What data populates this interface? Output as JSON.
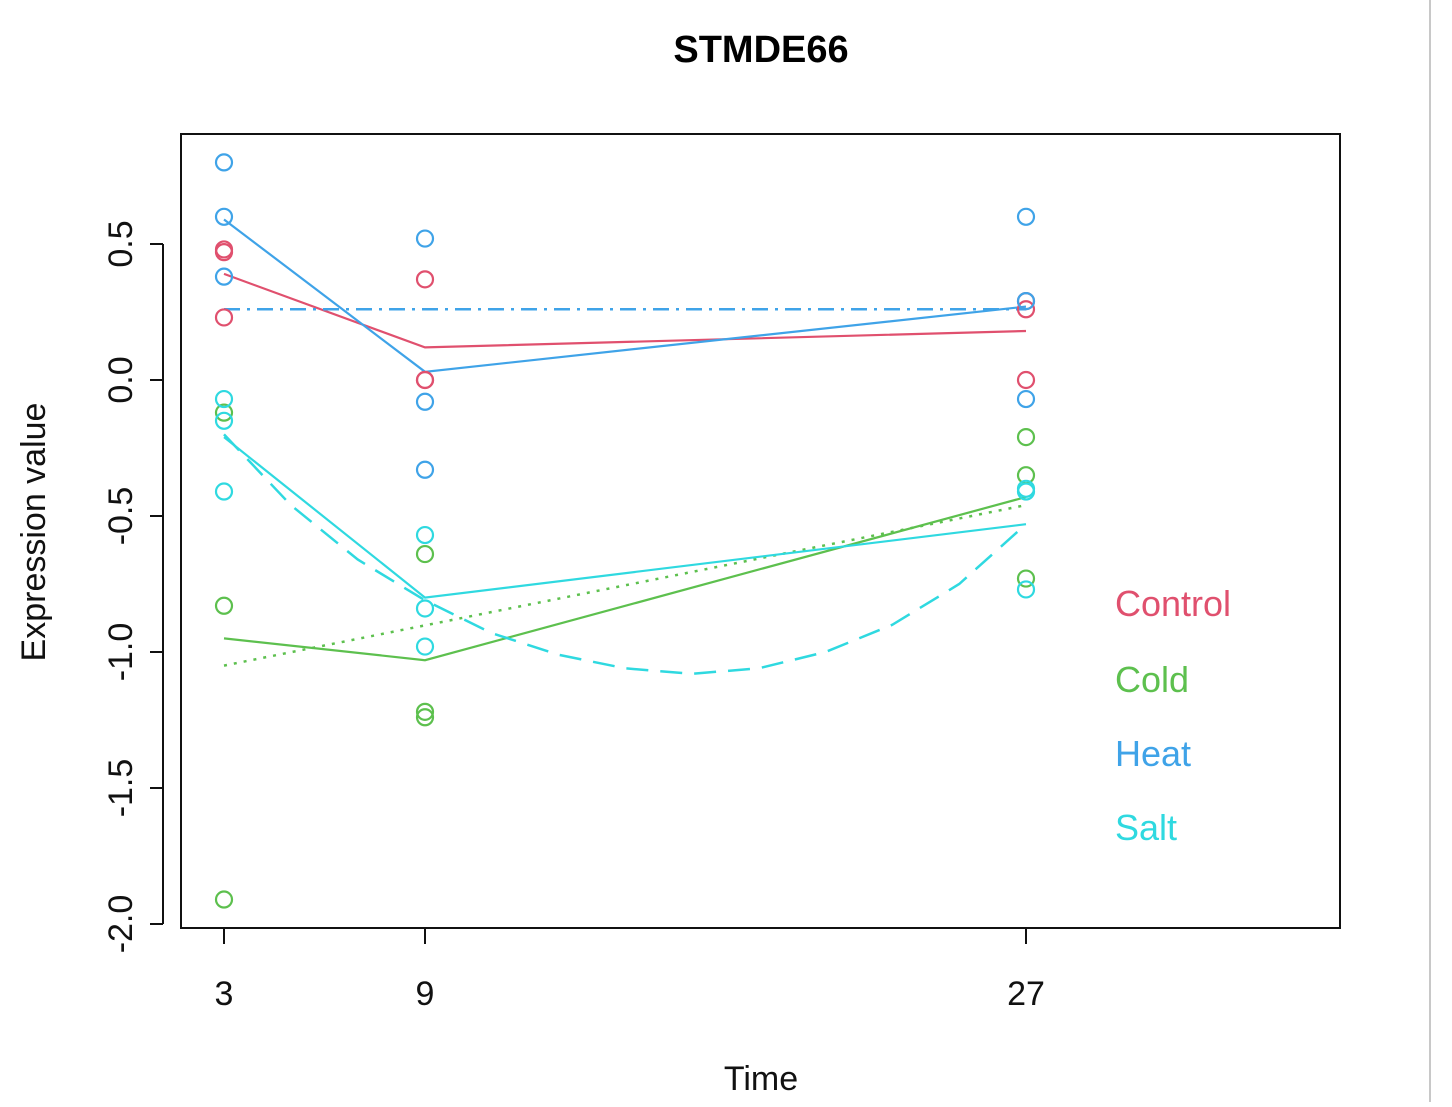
{
  "chart_data": {
    "type": "scatter",
    "title": "STMDE66",
    "xlabel": "Time",
    "ylabel": "Expression value",
    "x_ticks": [
      3,
      9,
      27
    ],
    "y_ticks": [
      -2.0,
      -1.5,
      -1.0,
      -0.5,
      0.0,
      0.5
    ],
    "y_tick_labels": [
      "-2.0",
      "-1.5",
      "-1.0",
      "-0.5",
      "0.0",
      "0.5"
    ],
    "x_tick_labels": [
      "3",
      "9",
      "27"
    ],
    "ylim": [
      -2.0,
      0.8
    ],
    "grid": false,
    "legend_position": "right",
    "series": [
      {
        "name": "Control",
        "color": "#e0506e",
        "points": [
          [
            3,
            0.47
          ],
          [
            3,
            0.48
          ],
          [
            3,
            0.23
          ],
          [
            9,
            0.37
          ],
          [
            9,
            0.0
          ],
          [
            9,
            0.0
          ],
          [
            27,
            0.29
          ],
          [
            27,
            0.26
          ],
          [
            27,
            0.0
          ]
        ],
        "mean_line": [
          [
            3,
            0.39
          ],
          [
            9,
            0.12
          ],
          [
            27,
            0.18
          ]
        ],
        "fit_line": [
          [
            3,
            0.26
          ],
          [
            27,
            0.26
          ]
        ],
        "fit_style": "dashdot"
      },
      {
        "name": "Cold",
        "color": "#5dc04e",
        "points": [
          [
            3,
            -0.12
          ],
          [
            3,
            -0.83
          ],
          [
            3,
            -1.91
          ],
          [
            9,
            -0.64
          ],
          [
            9,
            -1.22
          ],
          [
            9,
            -1.24
          ],
          [
            27,
            -0.21
          ],
          [
            27,
            -0.35
          ],
          [
            27,
            -0.73
          ]
        ],
        "mean_line": [
          [
            3,
            -0.95
          ],
          [
            9,
            -1.03
          ],
          [
            27,
            -0.43
          ]
        ],
        "fit_line": [
          [
            3,
            -1.05
          ],
          [
            27,
            -0.46
          ]
        ],
        "fit_style": "dotted"
      },
      {
        "name": "Heat",
        "color": "#3fa3e8",
        "points": [
          [
            3,
            0.8
          ],
          [
            3,
            0.6
          ],
          [
            3,
            0.38
          ],
          [
            9,
            0.52
          ],
          [
            9,
            -0.08
          ],
          [
            9,
            -0.33
          ],
          [
            27,
            0.6
          ],
          [
            27,
            0.29
          ],
          [
            27,
            -0.07
          ]
        ],
        "mean_line": [
          [
            3,
            0.59
          ],
          [
            9,
            0.03
          ],
          [
            27,
            0.27
          ]
        ],
        "fit_line": [
          [
            3,
            0.26
          ],
          [
            27,
            0.26
          ]
        ],
        "fit_style": "dashdot"
      },
      {
        "name": "Salt",
        "color": "#2fd9e0",
        "points": [
          [
            3,
            -0.07
          ],
          [
            3,
            -0.15
          ],
          [
            3,
            -0.41
          ],
          [
            9,
            -0.57
          ],
          [
            9,
            -0.84
          ],
          [
            9,
            -0.98
          ],
          [
            27,
            -0.4
          ],
          [
            27,
            -0.41
          ],
          [
            27,
            -0.77
          ]
        ],
        "mean_line": [
          [
            3,
            -0.21
          ],
          [
            9,
            -0.8
          ],
          [
            27,
            -0.53
          ]
        ],
        "fit_line": [
          [
            3,
            -0.2
          ],
          [
            5,
            -0.46
          ],
          [
            7,
            -0.66
          ],
          [
            9,
            -0.81
          ],
          [
            11,
            -0.93
          ],
          [
            13,
            -1.01
          ],
          [
            15,
            -1.06
          ],
          [
            17,
            -1.08
          ],
          [
            19,
            -1.06
          ],
          [
            21,
            -1.0
          ],
          [
            23,
            -0.9
          ],
          [
            25,
            -0.75
          ],
          [
            27,
            -0.53
          ]
        ],
        "fit_style": "dashed"
      }
    ]
  }
}
